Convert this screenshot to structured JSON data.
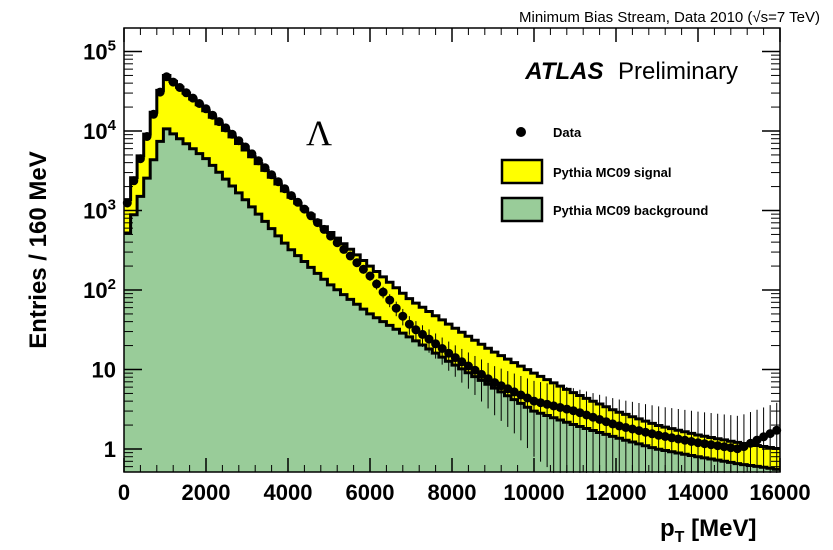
{
  "header": {
    "stream_label": "Minimum Bias Stream, Data 2010 (√s=7 TeV)"
  },
  "branding": {
    "atlas": "ATLAS",
    "preliminary": "Preliminary"
  },
  "particle_symbol": "Λ",
  "colors": {
    "signal_fill": "#ffff00",
    "background_fill": "#99cc99",
    "data_marker": "#000000",
    "outline": "#000000"
  },
  "chart_data": {
    "type": "histogram",
    "xlabel": "p_T [MeV]",
    "ylabel": "Entries / 160 MeV",
    "xlim": [
      0,
      16000
    ],
    "ylim": [
      0.5,
      200000
    ],
    "yscale": "log",
    "bin_width": 160,
    "x_ticks": [
      "0",
      "2000",
      "4000",
      "6000",
      "8000",
      "10000",
      "12000",
      "14000",
      "16000"
    ],
    "y_ticks": [
      {
        "value": 1,
        "base": "1",
        "exp": ""
      },
      {
        "value": 10,
        "base": "10",
        "exp": ""
      },
      {
        "value": 100,
        "base": "10",
        "exp": "2"
      },
      {
        "value": 1000,
        "base": "10",
        "exp": "3"
      },
      {
        "value": 10000,
        "base": "10",
        "exp": "4"
      },
      {
        "value": 100000,
        "base": "10",
        "exp": "5"
      }
    ],
    "legend": {
      "position": "top-right",
      "entries": [
        {
          "label": "Data",
          "kind": "marker"
        },
        {
          "label": "Pythia MC09 signal",
          "kind": "signal"
        },
        {
          "label": "Pythia MC09 background",
          "kind": "background"
        }
      ]
    },
    "series": [
      {
        "name": "Pythia MC09 background",
        "points": [
          [
            0,
            400
          ],
          [
            1000,
            11000
          ],
          [
            2000,
            4500
          ],
          [
            3000,
            1300
          ],
          [
            4000,
            350
          ],
          [
            5000,
            120
          ],
          [
            6000,
            50
          ],
          [
            7000,
            25
          ],
          [
            8000,
            12
          ],
          [
            9000,
            6
          ],
          [
            10000,
            3
          ],
          [
            11000,
            2
          ],
          [
            12000,
            1.4
          ],
          [
            13000,
            1.0
          ],
          [
            14000,
            0.8
          ],
          [
            15000,
            0.65
          ],
          [
            16000,
            0.55
          ]
        ]
      },
      {
        "name": "Pythia MC09 signal",
        "points": [
          [
            0,
            1000
          ],
          [
            1000,
            52000
          ],
          [
            2000,
            18000
          ],
          [
            3000,
            5500
          ],
          [
            4000,
            1600
          ],
          [
            5000,
            550
          ],
          [
            6000,
            200
          ],
          [
            7000,
            75
          ],
          [
            8000,
            35
          ],
          [
            9000,
            17
          ],
          [
            10000,
            9
          ],
          [
            11000,
            5
          ],
          [
            12000,
            3
          ],
          [
            13000,
            2
          ],
          [
            14000,
            1.5
          ],
          [
            15000,
            1.2
          ],
          [
            16000,
            1
          ]
        ]
      },
      {
        "name": "Data",
        "points": [
          [
            0,
            900
          ],
          [
            1000,
            50000
          ],
          [
            2000,
            19000
          ],
          [
            3000,
            6000
          ],
          [
            4000,
            1700
          ],
          [
            5000,
            500
          ],
          [
            6000,
            150
          ],
          [
            7000,
            35
          ],
          [
            8000,
            15
          ],
          [
            9000,
            7
          ],
          [
            10000,
            4
          ],
          [
            11000,
            3
          ],
          [
            12000,
            2
          ],
          [
            13000,
            1.5
          ],
          [
            14000,
            1.2
          ],
          [
            15000,
            1
          ],
          [
            16000,
            1.8
          ]
        ]
      }
    ]
  }
}
